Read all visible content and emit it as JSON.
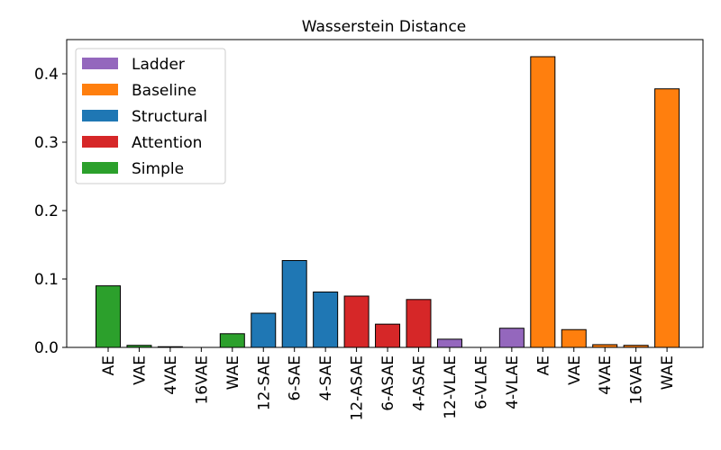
{
  "chart_data": {
    "type": "bar",
    "title": "Wasserstein Distance",
    "xlabel": "",
    "ylabel": "",
    "ylim": [
      0,
      0.45
    ],
    "yticks": [
      0.0,
      0.1,
      0.2,
      0.3,
      0.4
    ],
    "ytick_labels": [
      "0.0",
      "0.1",
      "0.2",
      "0.3",
      "0.4"
    ],
    "grid": false,
    "legend_position": "top-left",
    "legend": [
      {
        "label": "Ladder",
        "color": "#9467bd"
      },
      {
        "label": "Baseline",
        "color": "#ff7f0e"
      },
      {
        "label": "Structural",
        "color": "#1f77b4"
      },
      {
        "label": "Attention",
        "color": "#d62728"
      },
      {
        "label": "Simple",
        "color": "#2ca02c"
      }
    ],
    "categories": [
      "AE",
      "VAE",
      "4VAE",
      "16VAE",
      "WAE",
      "12-SAE",
      "6-SAE",
      "4-SAE",
      "12-ASAE",
      "6-ASAE",
      "4-ASAE",
      "12-VLAE",
      "6-VLAE",
      "4-VLAE",
      "AE",
      "VAE",
      "4VAE",
      "16VAE",
      "WAE"
    ],
    "values": [
      0.09,
      0.003,
      0.001,
      0.0,
      0.02,
      0.05,
      0.127,
      0.081,
      0.075,
      0.034,
      0.07,
      0.012,
      0.0,
      0.028,
      0.425,
      0.026,
      0.004,
      0.003,
      0.378
    ],
    "groups": [
      "Simple",
      "Simple",
      "Simple",
      "Simple",
      "Simple",
      "Structural",
      "Structural",
      "Structural",
      "Attention",
      "Attention",
      "Attention",
      "Ladder",
      "Ladder",
      "Ladder",
      "Baseline",
      "Baseline",
      "Baseline",
      "Baseline",
      "Baseline"
    ]
  }
}
